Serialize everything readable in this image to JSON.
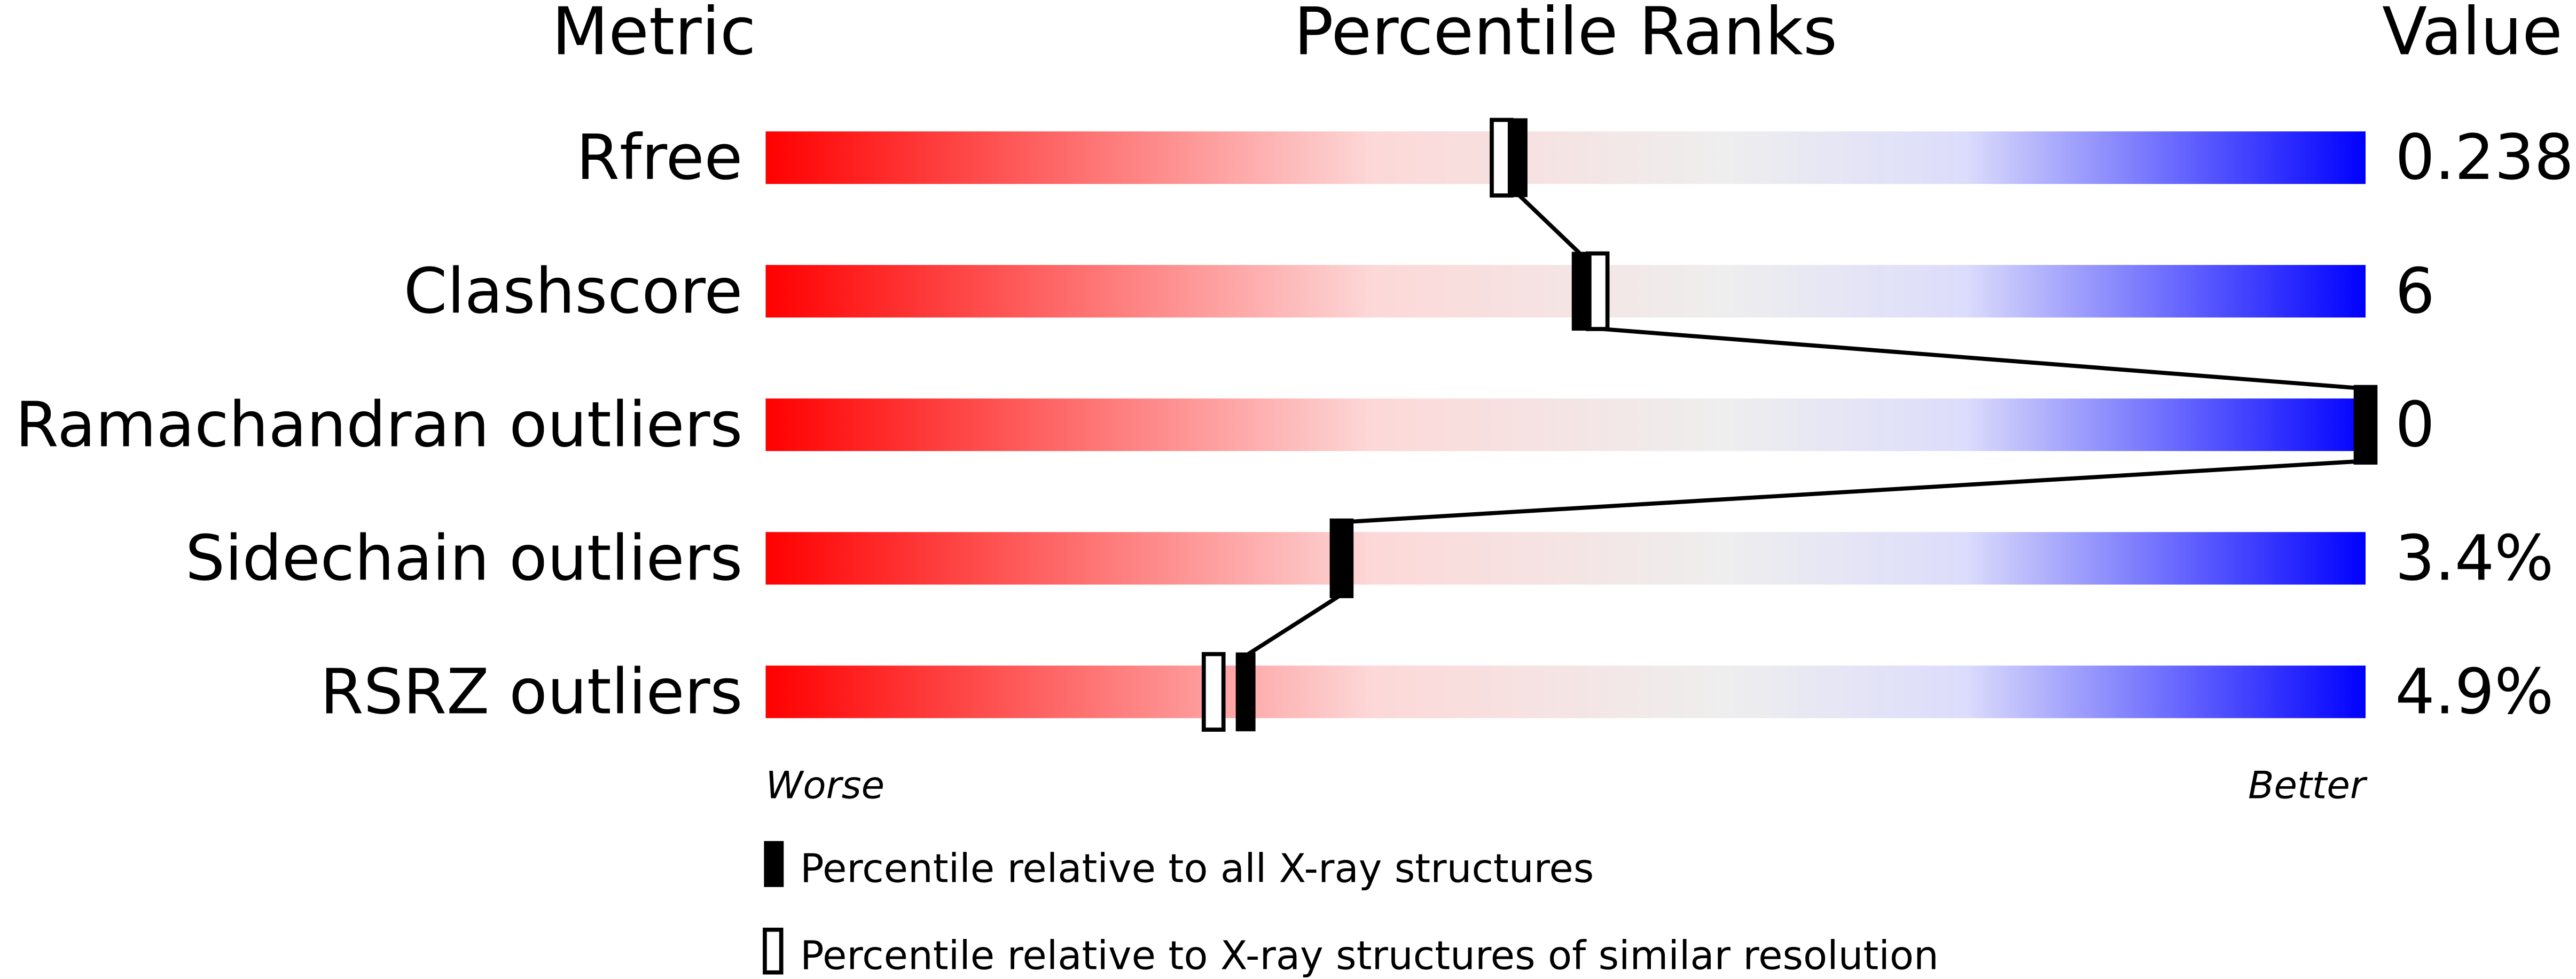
{
  "chart_data": {
    "type": "percentile-slider",
    "headers": {
      "metric": "Metric",
      "percentile": "Percentile Ranks",
      "value": "Value"
    },
    "xlim": [
      0,
      100
    ],
    "axis_labels": {
      "left": "Worse",
      "right": "Better"
    },
    "gradient_colors": [
      "#ff0000",
      "#fdd8d8",
      "#eeeeee",
      "#dcdcfc",
      "#0000ff"
    ],
    "metrics": [
      {
        "name": "Rfree",
        "value": "0.238",
        "percentile_all": 47,
        "percentile_similar": 46
      },
      {
        "name": "Clashscore",
        "value": "6",
        "percentile_all": 51,
        "percentile_similar": 52
      },
      {
        "name": "Ramachandran outliers",
        "value": "0",
        "percentile_all": 100,
        "percentile_similar": 100
      },
      {
        "name": "Sidechain outliers",
        "value": "3.4%",
        "percentile_all": 36,
        "percentile_similar": 36
      },
      {
        "name": "RSRZ outliers",
        "value": "4.9%",
        "percentile_all": 30,
        "percentile_similar": 28
      }
    ],
    "legend": [
      {
        "marker": "filled",
        "label": "Percentile relative to all X-ray structures"
      },
      {
        "marker": "open",
        "label": "Percentile relative to X-ray structures of similar resolution"
      }
    ]
  }
}
